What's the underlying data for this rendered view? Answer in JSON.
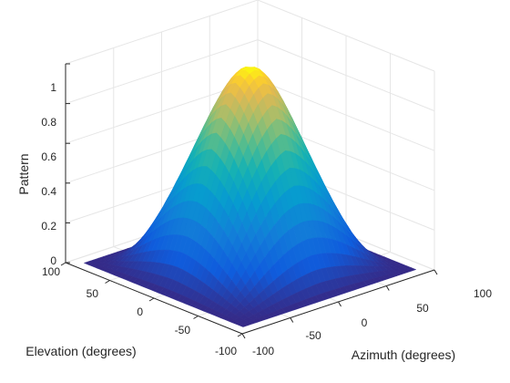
{
  "chart_data": {
    "type": "surface",
    "title": "",
    "xlabel": "Azimuth (degrees)",
    "ylabel": "Elevation (degrees)",
    "zlabel": "Pattern",
    "xlim": [
      -100,
      100
    ],
    "ylim": [
      -100,
      100
    ],
    "zlim": [
      0,
      1
    ],
    "x_ticks": [
      "-100",
      "-50",
      "0",
      "50",
      "100"
    ],
    "y_ticks": [
      "-100",
      "-50",
      "0",
      "50",
      "100"
    ],
    "z_ticks": [
      "0",
      "0.2",
      "0.4",
      "0.6",
      "0.8",
      "1"
    ],
    "grid": true,
    "colormap": "parula",
    "surface": {
      "azimuth_range": [
        -90,
        90
      ],
      "elevation_range": [
        -90,
        90
      ],
      "peak_value": 1.0,
      "peak_azimuth": 0,
      "peak_elevation": 0
    }
  }
}
